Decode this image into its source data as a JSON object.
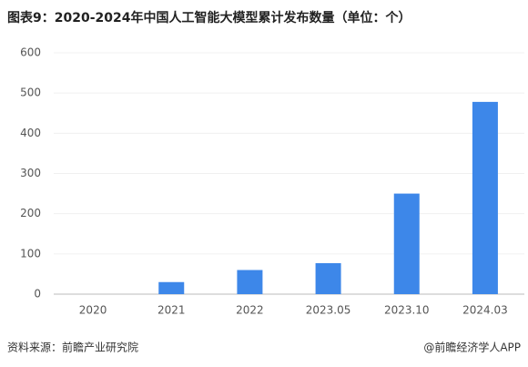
{
  "chart_data": {
    "type": "bar",
    "title": "图表9：2020-2024年中国人工智能大模型累计发布数量（单位：个）",
    "categories": [
      "2020",
      "2021",
      "2022",
      "2023.05",
      "2023.10",
      "2024.03"
    ],
    "values": [
      0,
      30,
      60,
      77,
      250,
      478
    ],
    "color": "#3d87e9",
    "ylim": [
      0,
      600
    ],
    "yticks": [
      0,
      100,
      200,
      300,
      400,
      500,
      600
    ],
    "grid": true,
    "source": "资料来源：前瞻产业研究院",
    "credit": "@前瞻经济学人APP"
  }
}
